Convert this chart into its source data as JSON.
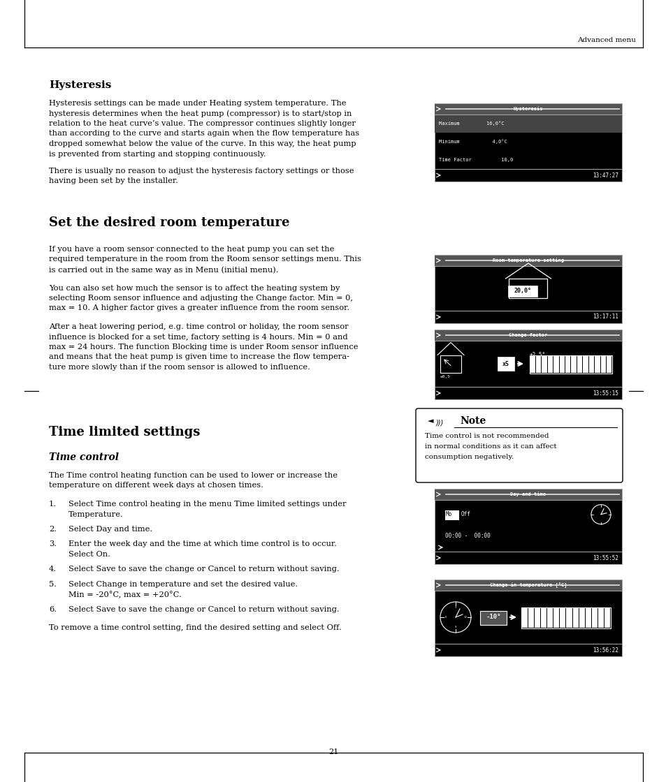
{
  "page_width": 9.54,
  "page_height": 11.2,
  "bg_color": "#ffffff",
  "header_text": "Advanced menu",
  "footer_page": "21",
  "section1_title": "Hysteresis",
  "section1_body": "Hysteresis settings can be made under Heating system temperature. The\nhysteresis determines when the heat pump (compressor) is to start/stop in\nrelation to the heat curve’s value. The compressor continues slightly longer\nthan according to the curve and starts again when the flow temperature has\ndropped somewhat below the value of the curve. In this way, the heat pump\nis prevented from starting and stopping continuously.",
  "section1_body2": "There is usually no reason to adjust the hysteresis factory settings or those\nhaving been set by the installer.",
  "section2_title": "Set the desired room temperature",
  "section2_body1": "If you have a room sensor connected to the heat pump you can set the\nrequired temperature in the room from the Room sensor settings menu. This\nis carried out in the same way as in Menu (initial menu).",
  "section2_body2": "You can also set how much the sensor is to affect the heating system by\nselecting Room sensor influence and adjusting the Change factor. Min = 0,\nmax = 10. A higher factor gives a greater influence from the room sensor.",
  "section2_body3": "After a heat lowering period, e.g. time control or holiday, the room sensor\ninfluence is blocked for a set time, factory setting is 4 hours. Min = 0 and\nmax = 24 hours. The function Blocking time is under Room sensor influence\nand means that the heat pump is given time to increase the flow tempera-\nture more slowly than if the room sensor is allowed to influence.",
  "section3_title": "Time limited settings",
  "section3_sub": "Time control",
  "section3_body1": "The Time control heating function can be used to lower or increase the\ntemperature on different week days at chosen times.",
  "section3_steps": [
    [
      "1.",
      "Select Time control heating in the menu Time limited settings under\n    Temperature."
    ],
    [
      "2.",
      "Select Day and time."
    ],
    [
      "3.",
      "Enter the week day and the time at which time control is to occur.\n    Select On."
    ],
    [
      "4.",
      "Select Save to save the change or Cancel to return without saving."
    ],
    [
      "5.",
      "Select Change in temperature and set the desired value.\n    Min = -20°C, max = +20°C."
    ],
    [
      "6.",
      "Select Save to save the change or Cancel to return without saving."
    ]
  ],
  "section3_footer": "To remove a time control setting, find the desired setting and select Off.",
  "note_title": "Note",
  "note_body": "Time control is not recommended\nin normal conditions as it can affect\nconsumption negatively.",
  "lcd1_title": "Hysteresis",
  "lcd1_lines": [
    "Maximum         16,0°C",
    "Minimum           4,0°C",
    "Time Factor          10,0"
  ],
  "lcd1_time": "13:47:27",
  "lcd1_highlight": 0,
  "lcd2_title": "Room temperature setting",
  "lcd2_time": "13:17:11",
  "lcd3_title": "Change factor",
  "lcd3_time": "13:55:15",
  "lcd4_title": "Day and time",
  "lcd4_lines": [
    "Mo  Off",
    "00:00 -  00:00"
  ],
  "lcd4_time": "13:55:52",
  "lcd5_title": "Change in temperature [°C]",
  "lcd5_time": "13:56:22"
}
